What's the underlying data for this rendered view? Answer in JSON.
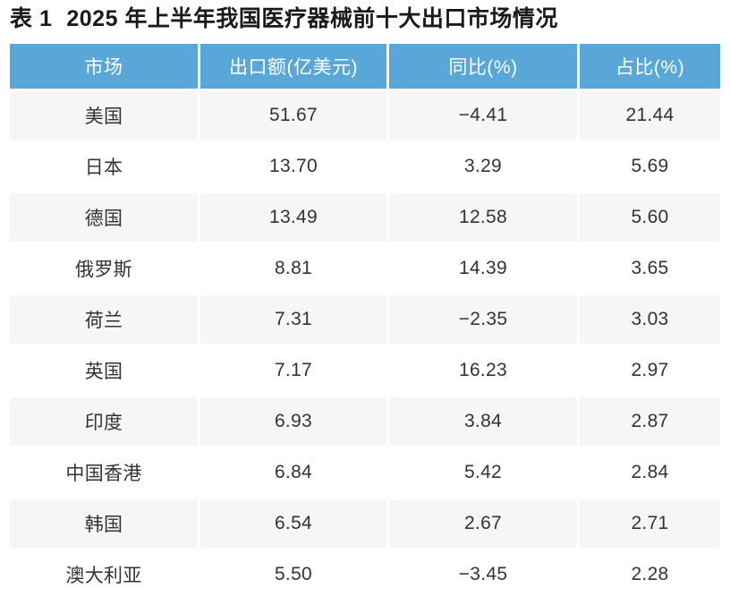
{
  "title": {
    "label": "表 1",
    "text": "2025 年上半年我国医疗器械前十大出口市场情况"
  },
  "chart_data": {
    "type": "table",
    "title": "2025 年上半年我国医疗器械前十大出口市场情况",
    "columns": [
      "市场",
      "出口额(亿美元)",
      "同比(%)",
      "占比(%)"
    ],
    "rows": [
      [
        "美国",
        "51.67",
        "−4.41",
        "21.44"
      ],
      [
        "日本",
        "13.70",
        "3.29",
        "5.69"
      ],
      [
        "德国",
        "13.49",
        "12.58",
        "5.60"
      ],
      [
        "俄罗斯",
        "8.81",
        "14.39",
        "3.65"
      ],
      [
        "荷兰",
        "7.31",
        "−2.35",
        "3.03"
      ],
      [
        "英国",
        "7.17",
        "16.23",
        "2.97"
      ],
      [
        "印度",
        "6.93",
        "3.84",
        "2.87"
      ],
      [
        "中国香港",
        "6.84",
        "5.42",
        "2.84"
      ],
      [
        "韩国",
        "6.54",
        "2.67",
        "2.71"
      ],
      [
        "澳大利亚",
        "5.50",
        "−3.45",
        "2.28"
      ]
    ],
    "layout": {
      "header_position": "top",
      "row_striping": "odd-rows-shaded",
      "cell_alignment": "center"
    }
  },
  "colors": {
    "header_bg": "#58a7d8",
    "header_text": "#ffffff",
    "row_alt_bg": "#f5f6f7",
    "row_bg": "#ffffff",
    "cell_text": "#333333",
    "title_text": "#1a1a1a"
  }
}
